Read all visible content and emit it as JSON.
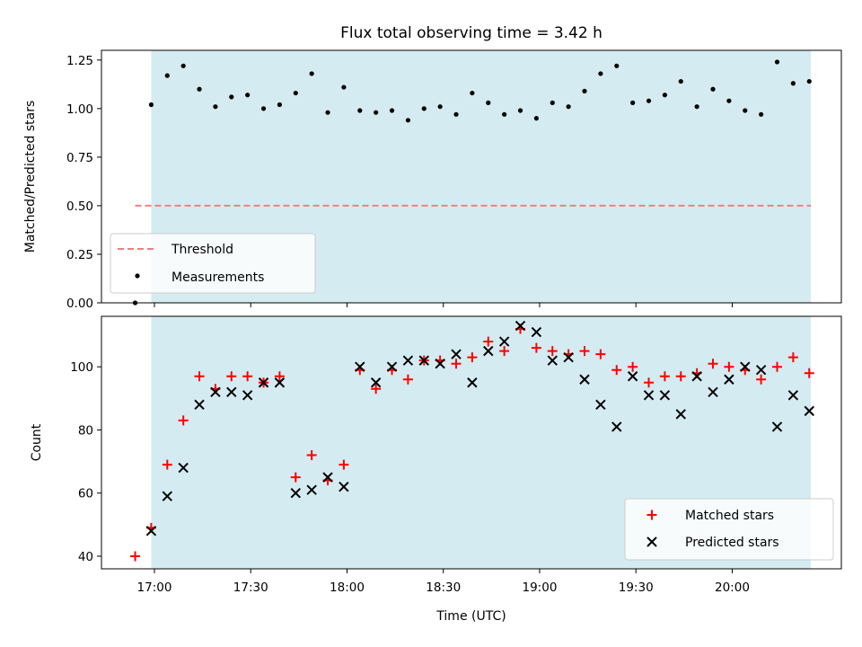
{
  "chart_data": {
    "title": "Flux total observing time = 3.42 h",
    "xlabel": "Time (UTC)",
    "x_unit": "minutes after 16:00 UTC",
    "x_ticks": [
      {
        "value": 60,
        "label": "17:00"
      },
      {
        "value": 90,
        "label": "17:30"
      },
      {
        "value": 120,
        "label": "18:00"
      },
      {
        "value": 150,
        "label": "18:30"
      },
      {
        "value": 180,
        "label": "19:00"
      },
      {
        "value": 210,
        "label": "19:30"
      },
      {
        "value": 240,
        "label": "20:00"
      }
    ],
    "xlim": [
      43.5,
      274
    ],
    "shaded_interval": [
      59,
      264.5
    ],
    "shade_color": "#d4ebf1",
    "panels": [
      {
        "type": "scatter",
        "ylabel": "Matched/Predicted stars",
        "ylim": [
          0,
          1.3
        ],
        "y_ticks": [
          {
            "value": 0,
            "label": "0.00"
          },
          {
            "value": 0.25,
            "label": "0.25"
          },
          {
            "value": 0.5,
            "label": "0.50"
          },
          {
            "value": 0.75,
            "label": "0.75"
          },
          {
            "value": 1.0,
            "label": "1.00"
          },
          {
            "value": 1.25,
            "label": "1.25"
          }
        ],
        "threshold": {
          "name": "Threshold",
          "value": 0.5,
          "x_range": [
            54,
            264.5
          ],
          "color": "#f08080"
        },
        "legend": {
          "position": "lower-left",
          "entries": [
            "Threshold",
            "Measurements"
          ]
        },
        "series": [
          {
            "name": "Measurements",
            "marker": "dot",
            "color": "#000000",
            "x": [
              54,
              59,
              64,
              69,
              74,
              79,
              84,
              89,
              94,
              99,
              104,
              109,
              114,
              119,
              124,
              129,
              134,
              139,
              144,
              149,
              154,
              159,
              164,
              169,
              174,
              179,
              184,
              189,
              194,
              199,
              204,
              209,
              214,
              219,
              224,
              229,
              234,
              239,
              244,
              249,
              254,
              259,
              264
            ],
            "y": [
              0.0,
              1.02,
              1.17,
              1.22,
              1.1,
              1.01,
              1.06,
              1.07,
              1.0,
              1.02,
              1.08,
              1.18,
              0.98,
              1.11,
              0.99,
              0.98,
              0.99,
              0.94,
              1.0,
              1.01,
              0.97,
              1.08,
              1.03,
              0.97,
              0.99,
              0.95,
              1.03,
              1.01,
              1.09,
              1.18,
              1.22,
              1.03,
              1.04,
              1.07,
              1.14,
              1.01,
              1.1,
              1.04,
              0.99,
              0.97,
              1.24,
              1.13,
              1.14
            ]
          }
        ]
      },
      {
        "type": "scatter",
        "ylabel": "Count",
        "ylim": [
          36,
          116
        ],
        "y_ticks": [
          {
            "value": 40,
            "label": "40"
          },
          {
            "value": 60,
            "label": "60"
          },
          {
            "value": 80,
            "label": "80"
          },
          {
            "value": 100,
            "label": "100"
          }
        ],
        "legend": {
          "position": "lower-right",
          "entries": [
            "Matched stars",
            "Predicted stars"
          ]
        },
        "series": [
          {
            "name": "Matched stars",
            "marker": "plus",
            "color": "#ff0000",
            "x": [
              54,
              59,
              64,
              69,
              74,
              79,
              84,
              89,
              94,
              99,
              104,
              109,
              114,
              119,
              124,
              129,
              134,
              139,
              144,
              149,
              154,
              159,
              164,
              169,
              174,
              179,
              184,
              189,
              194,
              199,
              204,
              209,
              214,
              219,
              224,
              229,
              234,
              239,
              244,
              249,
              254,
              259,
              264
            ],
            "y": [
              40,
              49,
              69,
              83,
              97,
              93,
              97,
              97,
              95,
              97,
              65,
              72,
              64,
              69,
              99,
              93,
              99,
              96,
              102,
              102,
              101,
              103,
              108,
              105,
              112,
              106,
              105,
              104,
              105,
              104,
              99,
              100,
              95,
              97,
              97,
              98,
              101,
              100,
              99,
              96,
              100,
              103,
              98
            ]
          },
          {
            "name": "Predicted stars",
            "marker": "x",
            "color": "#000000",
            "x": [
              59,
              64,
              69,
              74,
              79,
              84,
              89,
              94,
              99,
              104,
              109,
              114,
              119,
              124,
              129,
              134,
              139,
              144,
              149,
              154,
              159,
              164,
              169,
              174,
              179,
              184,
              189,
              194,
              199,
              204,
              209,
              214,
              219,
              224,
              229,
              234,
              239,
              244,
              249,
              254,
              259,
              264
            ],
            "y": [
              48,
              59,
              68,
              88,
              92,
              92,
              91,
              95,
              95,
              60,
              61,
              65,
              62,
              100,
              95,
              100,
              102,
              102,
              101,
              104,
              95,
              105,
              108,
              113,
              111,
              102,
              103,
              96,
              88,
              81,
              97,
              91,
              91,
              85,
              97,
              92,
              96,
              100,
              99,
              81,
              91,
              86
            ]
          }
        ]
      }
    ]
  }
}
